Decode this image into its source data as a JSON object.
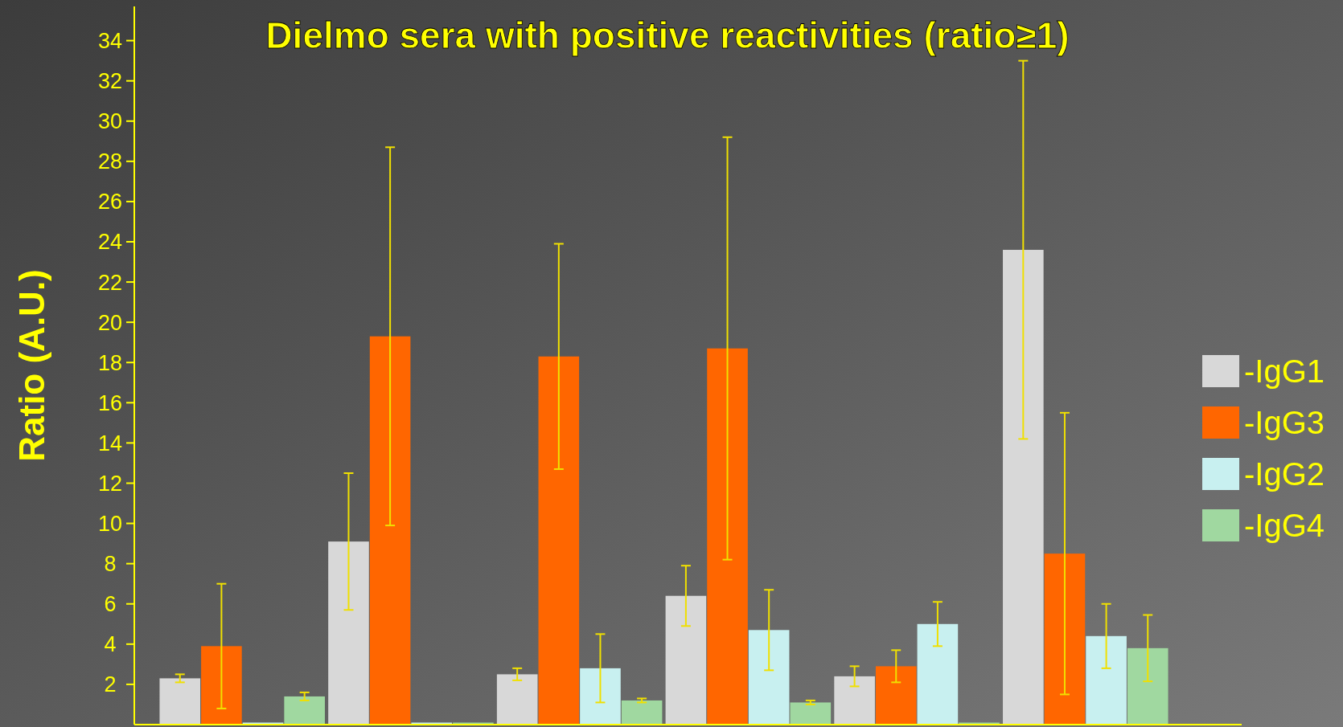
{
  "chart_data": {
    "type": "bar",
    "title": "Dielmo sera with positive reactivities (ratio≥1)",
    "ylabel": "Ratio (A.U.)",
    "categories": [
      null,
      null,
      null,
      null,
      null,
      null
    ],
    "series": [
      {
        "name": "-IgG1",
        "color": "#d8d8d8",
        "values": [
          2.3,
          9.1,
          2.5,
          6.4,
          2.4,
          23.6
        ],
        "errors": [
          0.2,
          3.4,
          0.3,
          1.5,
          0.5,
          9.4
        ]
      },
      {
        "name": "-IgG3",
        "color": "#ff6600",
        "values": [
          3.9,
          19.3,
          18.3,
          18.7,
          2.9,
          8.5
        ],
        "errors": [
          3.1,
          9.4,
          5.6,
          10.5,
          0.8,
          7.0
        ]
      },
      {
        "name": "-IgG2",
        "color": "#c8f0f0",
        "values": [
          0.1,
          0.1,
          2.8,
          4.7,
          5.0,
          4.4
        ],
        "errors": [
          null,
          null,
          1.7,
          2.0,
          1.1,
          1.6
        ]
      },
      {
        "name": "-IgG4",
        "color": "#a0d8a0",
        "values": [
          1.4,
          0.1,
          1.2,
          1.1,
          0.1,
          3.8
        ],
        "errors": [
          0.2,
          null,
          0.1,
          0.1,
          null,
          1.65
        ]
      }
    ],
    "ylim": [
      0,
      35.7
    ],
    "yticks": [
      2,
      4,
      6,
      8,
      10,
      12,
      14,
      16,
      18,
      20,
      22,
      24,
      26,
      28,
      30,
      32,
      34
    ],
    "tick_labels": "y",
    "legend": "right",
    "grid": false
  }
}
